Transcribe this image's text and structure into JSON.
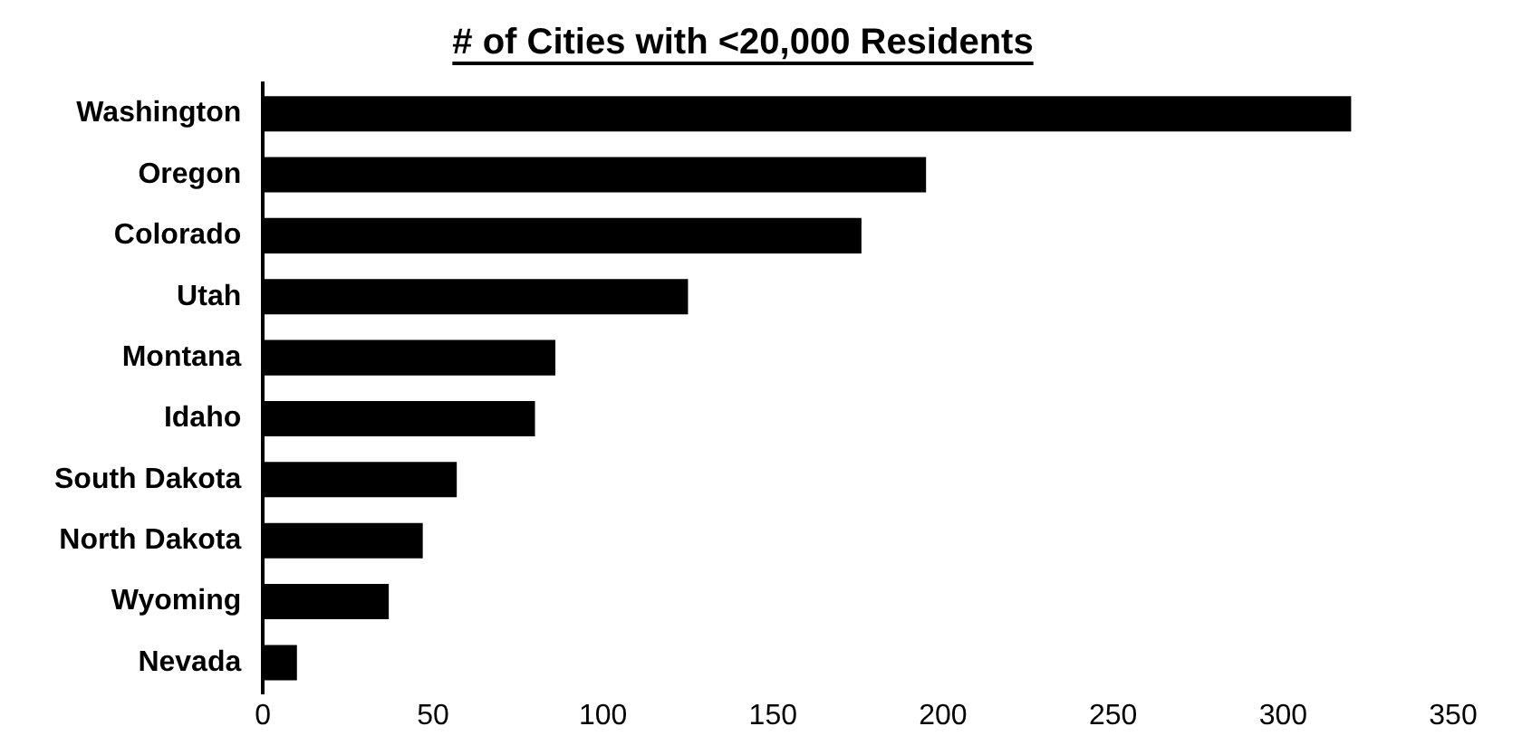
{
  "chart_data": {
    "type": "bar",
    "orientation": "horizontal",
    "title": "# of Cities with <20,000 Residents",
    "categories": [
      "Washington",
      "Oregon",
      "Colorado",
      "Utah",
      "Montana",
      "Idaho",
      "South Dakota",
      "North Dakota",
      "Wyoming",
      "Nevada"
    ],
    "values": [
      320,
      195,
      176,
      125,
      86,
      80,
      57,
      47,
      37,
      10
    ],
    "color": "#000000",
    "xlim": [
      0,
      350
    ],
    "xticks": [
      0,
      50,
      100,
      150,
      200,
      250,
      300,
      350
    ],
    "grid": false,
    "legend": false
  }
}
